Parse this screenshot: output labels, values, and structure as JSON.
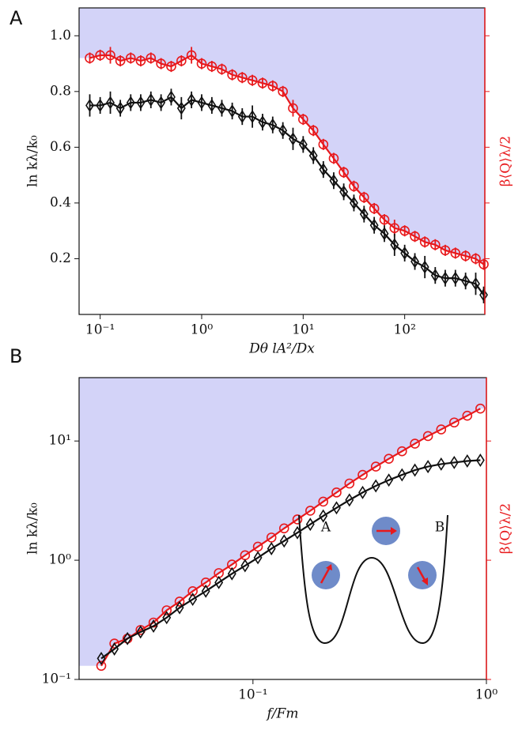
{
  "chart_data": [
    {
      "type": "line",
      "panel_label": "A",
      "xlabel": "Dθ lA²/Dx",
      "ylabel": "ln kλ/k₀",
      "y2label": "β⟨Q⟩λ/2",
      "xlog": true,
      "ylog": false,
      "xlim": [
        0.062,
        616
      ],
      "ylim": [
        0.0,
        1.1
      ],
      "xticks": [
        {
          "value": 0.1,
          "label": "10⁻¹"
        },
        {
          "value": 1,
          "label": "10⁰"
        },
        {
          "value": 10,
          "label": "10¹"
        },
        {
          "value": 100,
          "label": "10²"
        }
      ],
      "yticks": [
        0.2,
        0.4,
        0.6,
        0.8,
        {
          "value": 1,
          "label": "1.0"
        }
      ],
      "shade_color": "#d3d3f8",
      "shade_above_series": 0,
      "y2_color": "#e8191c",
      "x": [
        0.079,
        0.1,
        0.126,
        0.158,
        0.2,
        0.251,
        0.316,
        0.398,
        0.501,
        0.631,
        0.794,
        1,
        1.26,
        1.58,
        2,
        2.51,
        3.16,
        3.98,
        5.01,
        6.31,
        7.94,
        10,
        12.6,
        15.8,
        20,
        25.1,
        31.6,
        39.8,
        50.1,
        63.1,
        79.4,
        100,
        126,
        158,
        200,
        251,
        316,
        398,
        501,
        600
      ],
      "series": [
        {
          "color": "#e8191c",
          "marker": "circle",
          "values": [
            0.92,
            0.93,
            0.93,
            0.91,
            0.92,
            0.91,
            0.92,
            0.9,
            0.89,
            0.91,
            0.93,
            0.9,
            0.89,
            0.88,
            0.86,
            0.85,
            0.84,
            0.83,
            0.82,
            0.8,
            0.74,
            0.7,
            0.66,
            0.61,
            0.56,
            0.51,
            0.46,
            0.42,
            0.38,
            0.34,
            0.31,
            0.3,
            0.28,
            0.26,
            0.25,
            0.23,
            0.22,
            0.21,
            0.2,
            0.18
          ],
          "errors": [
            0.02,
            0.02,
            0.03,
            0.02,
            0.02,
            0.02,
            0.02,
            0.02,
            0.02,
            0.02,
            0.03,
            0.02,
            0.02,
            0.02,
            0.02,
            0.02,
            0.02,
            0.02,
            0.02,
            0.02,
            0.03,
            0.02,
            0.02,
            0.02,
            0.02,
            0.02,
            0.02,
            0.02,
            0.02,
            0.02,
            0.03,
            0.02,
            0.02,
            0.02,
            0.02,
            0.02,
            0.02,
            0.02,
            0.02,
            0.02
          ]
        },
        {
          "color": "#111111",
          "marker": "diamond",
          "values": [
            0.75,
            0.75,
            0.76,
            0.74,
            0.76,
            0.76,
            0.77,
            0.76,
            0.78,
            0.74,
            0.77,
            0.76,
            0.75,
            0.74,
            0.73,
            0.71,
            0.71,
            0.69,
            0.68,
            0.66,
            0.63,
            0.61,
            0.57,
            0.52,
            0.48,
            0.44,
            0.4,
            0.36,
            0.32,
            0.29,
            0.25,
            0.22,
            0.19,
            0.17,
            0.14,
            0.13,
            0.13,
            0.12,
            0.11,
            0.07
          ],
          "errors": [
            0.04,
            0.03,
            0.04,
            0.03,
            0.03,
            0.03,
            0.03,
            0.03,
            0.03,
            0.04,
            0.03,
            0.03,
            0.03,
            0.03,
            0.03,
            0.03,
            0.04,
            0.03,
            0.03,
            0.03,
            0.04,
            0.03,
            0.03,
            0.03,
            0.03,
            0.03,
            0.03,
            0.03,
            0.03,
            0.03,
            0.04,
            0.03,
            0.03,
            0.04,
            0.03,
            0.03,
            0.03,
            0.03,
            0.04,
            0.03
          ]
        }
      ]
    },
    {
      "type": "line",
      "panel_label": "B",
      "xlabel": "f/Fm",
      "ylabel": "ln kλ/k₀",
      "y2label": "β⟨Q⟩λ/2",
      "xlog": true,
      "ylog": true,
      "xlim": [
        0.018,
        1
      ],
      "ylim": [
        0.1,
        34
      ],
      "xticks": [
        {
          "value": 0.1,
          "label": "10⁻¹"
        },
        {
          "value": 1,
          "label": "10⁰"
        }
      ],
      "yticks": [
        {
          "value": 0.1,
          "label": "10⁻¹"
        },
        {
          "value": 1,
          "label": "10⁰"
        },
        {
          "value": 10,
          "label": "10¹"
        }
      ],
      "shade_color": "#d3d3f8",
      "shade_above_series": 0,
      "y2_color": "#e8191c",
      "inset": {
        "left": "A",
        "right": "B"
      },
      "x": [
        0.0224,
        0.0255,
        0.029,
        0.033,
        0.0375,
        0.0427,
        0.0485,
        0.0552,
        0.0628,
        0.0714,
        0.0813,
        0.0925,
        0.105,
        0.12,
        0.136,
        0.155,
        0.176,
        0.2,
        0.228,
        0.259,
        0.295,
        0.336,
        0.382,
        0.435,
        0.494,
        0.562,
        0.64,
        0.728,
        0.828,
        0.942
      ],
      "series": [
        {
          "color": "#e8191c",
          "marker": "circle",
          "values": [
            0.13,
            0.2,
            0.22,
            0.26,
            0.3,
            0.38,
            0.45,
            0.55,
            0.65,
            0.78,
            0.92,
            1.1,
            1.3,
            1.55,
            1.85,
            2.2,
            2.6,
            3.1,
            3.7,
            4.4,
            5.2,
            6.1,
            7.1,
            8.2,
            9.5,
            11,
            12.5,
            14.3,
            16.3,
            18.7
          ]
        },
        {
          "color": "#111111",
          "marker": "diamond",
          "values": [
            0.15,
            0.18,
            0.22,
            0.25,
            0.28,
            0.33,
            0.4,
            0.47,
            0.55,
            0.65,
            0.77,
            0.9,
            1.05,
            1.25,
            1.45,
            1.7,
            2.0,
            2.35,
            2.75,
            3.2,
            3.7,
            4.2,
            4.7,
            5.2,
            5.7,
            6.1,
            6.4,
            6.6,
            6.8,
            6.9
          ]
        }
      ]
    }
  ]
}
